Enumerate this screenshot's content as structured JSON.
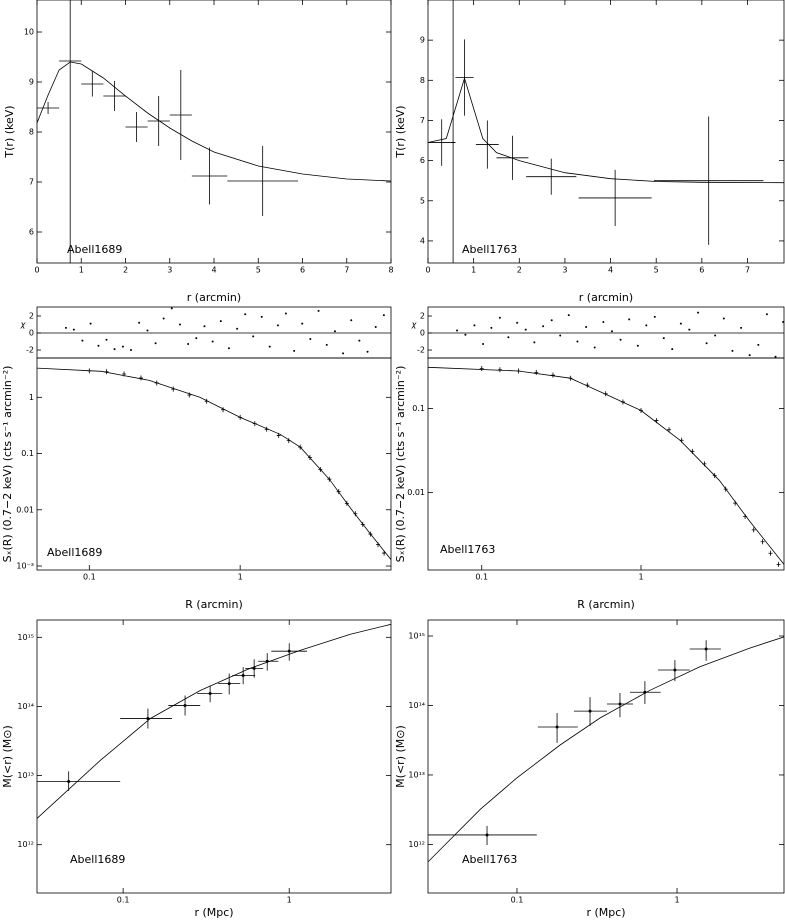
{
  "chart_data": [
    {
      "type": "errorbar",
      "ylabel": "T(r) (keV)",
      "xlabel": "r (arcmin)",
      "annotation": "Abell1689",
      "color": "#000000",
      "xlim": [
        0,
        8
      ],
      "ylim": [
        5.38,
        10.64
      ],
      "xticks": [
        0,
        1,
        2,
        3,
        4,
        5,
        6,
        7,
        8
      ],
      "yticks": [
        6,
        7,
        8,
        9,
        10
      ],
      "x": [
        0.25,
        0.75,
        1.25,
        1.75,
        2.25,
        2.75,
        3.25,
        3.9,
        5.1
      ],
      "xerr": [
        0.25,
        0.25,
        0.25,
        0.25,
        0.25,
        0.25,
        0.25,
        0.4,
        0.8
      ],
      "values": [
        8.48,
        9.42,
        8.96,
        8.72,
        8.1,
        8.22,
        8.34,
        7.12,
        7.02
      ],
      "yerr": [
        0.12,
        5.0,
        0.25,
        0.3,
        0.3,
        0.5,
        0.9,
        0.57,
        0.7
      ],
      "model": {
        "x": [
          0,
          0.25,
          0.5,
          0.75,
          1,
          1.5,
          2,
          2.5,
          3,
          3.5,
          4,
          5,
          6,
          7,
          8
        ],
        "values": [
          8.18,
          8.74,
          9.24,
          9.4,
          9.36,
          9.08,
          8.72,
          8.38,
          8.08,
          7.82,
          7.6,
          7.32,
          7.16,
          7.06,
          7.02
        ]
      }
    },
    {
      "type": "errorbar",
      "ylabel": "T(r) (keV)",
      "xlabel": "r (arcmin)",
      "annotation": "Abell1763",
      "color": "#000000",
      "xlim": [
        0,
        7.8
      ],
      "ylim": [
        3.45,
        10
      ],
      "xticks": [
        0,
        1,
        2,
        3,
        4,
        5,
        6,
        7
      ],
      "yticks": [
        4,
        5,
        6,
        7,
        8,
        9
      ],
      "x": [
        0.3,
        0.55,
        0.8,
        1.3,
        1.85,
        2.7,
        4.1,
        6.15
      ],
      "xerr": [
        0.3,
        0.05,
        0.2,
        0.25,
        0.35,
        0.55,
        0.8,
        1.2
      ],
      "values": [
        6.45,
        6.45,
        8.07,
        6.4,
        6.07,
        5.6,
        5.07,
        5.5
      ],
      "yerr": [
        0.58,
        6.0,
        0.95,
        0.6,
        0.55,
        0.45,
        0.7,
        1.6
      ],
      "model": {
        "x": [
          0,
          0.4,
          0.6,
          0.8,
          1.0,
          1.2,
          1.5,
          2,
          3,
          4,
          5,
          6,
          7.8
        ],
        "values": [
          6.45,
          6.55,
          7.3,
          8.05,
          7.3,
          6.55,
          6.2,
          6.0,
          5.7,
          5.55,
          5.48,
          5.46,
          5.45
        ]
      }
    },
    {
      "type": "errorbar",
      "ylabel": "Sₓ(R) (0.7−2 keV) (cts s⁻¹ arcmin⁻²)",
      "xlabel": "R (arcmin)",
      "annotation": "Abell1689",
      "color": "#555555",
      "xlog": true,
      "ylog": true,
      "xlim": [
        0.045,
        10
      ],
      "ylim": [
        0.00085,
        5
      ],
      "xticks": [
        0.1,
        1
      ],
      "yticks": [
        {
          "value": 0.001,
          "label": "10⁻³"
        },
        0.01,
        0.1,
        1
      ],
      "x": [
        0.1,
        0.13,
        0.17,
        0.22,
        0.28,
        0.36,
        0.46,
        0.6,
        0.77,
        1.0,
        1.25,
        1.5,
        1.8,
        2.1,
        2.5,
        2.9,
        3.4,
        3.9,
        4.5,
        5.1,
        5.8,
        6.5,
        7.3,
        8.2,
        9.0
      ],
      "values": [
        2.95,
        2.85,
        2.6,
        2.2,
        1.8,
        1.4,
        1.1,
        0.85,
        0.6,
        0.44,
        0.34,
        0.27,
        0.21,
        0.17,
        0.13,
        0.085,
        0.052,
        0.035,
        0.021,
        0.013,
        0.0085,
        0.0055,
        0.0037,
        0.0024,
        0.0017
      ],
      "model": {
        "x": [
          0.045,
          0.12,
          0.25,
          0.54,
          1,
          1.84,
          2.5,
          3.9,
          5.35,
          7.2,
          10
        ],
        "values": [
          3.3,
          2.9,
          2.0,
          1.0,
          0.44,
          0.22,
          0.13,
          0.035,
          0.011,
          0.0039,
          0.0013
        ]
      },
      "residuals": {
        "ylabel": "χ",
        "ylim": [
          -2.94,
          3.06
        ],
        "yticks": [
          -2,
          0,
          2
        ],
        "x": [
          0.07,
          0.079,
          0.09,
          0.102,
          0.115,
          0.13,
          0.147,
          0.167,
          0.189,
          0.214,
          0.243,
          0.275,
          0.311,
          0.352,
          0.399,
          0.452,
          0.512,
          0.58,
          0.657,
          0.744,
          0.843,
          0.955,
          1.08,
          1.22,
          1.39,
          1.57,
          1.78,
          2.01,
          2.28,
          2.58,
          2.92,
          3.31,
          3.75,
          4.25,
          4.81,
          5.45,
          6.17,
          6.99,
          7.92,
          8.97
        ],
        "values": [
          0.6,
          0.4,
          -0.9,
          1.1,
          -1.5,
          -0.8,
          -1.9,
          -1.6,
          -2.0,
          1.2,
          0.3,
          -1.2,
          1.7,
          2.9,
          1.0,
          -1.3,
          -0.6,
          0.8,
          -1.0,
          1.4,
          -1.8,
          0.5,
          2.2,
          -0.4,
          1.9,
          -1.6,
          0.9,
          2.3,
          -2.1,
          1.1,
          -0.7,
          2.6,
          -1.4,
          0.2,
          -2.4,
          1.5,
          -0.9,
          -2.2,
          0.7,
          2.1
        ]
      }
    },
    {
      "type": "errorbar",
      "ylabel": "Sₓ(R) (0.7−2 keV) (cts s⁻¹ arcmin⁻²)",
      "xlabel": "R (arcmin)",
      "annotation": "Abell1763",
      "color": "#555555",
      "xlog": true,
      "ylog": true,
      "xlim": [
        0.046,
        7.9
      ],
      "ylim": [
        0.0012,
        0.4
      ],
      "xticks": [
        0.1,
        1
      ],
      "yticks": [
        0.01,
        0.1
      ],
      "x": [
        0.1,
        0.13,
        0.17,
        0.22,
        0.28,
        0.36,
        0.46,
        0.6,
        0.77,
        1.0,
        1.25,
        1.5,
        1.8,
        2.1,
        2.5,
        2.9,
        3.4,
        3.9,
        4.5,
        5.1,
        5.8,
        6.5,
        7.3
      ],
      "values": [
        0.3,
        0.29,
        0.28,
        0.27,
        0.25,
        0.23,
        0.19,
        0.15,
        0.12,
        0.095,
        0.072,
        0.056,
        0.042,
        0.031,
        0.022,
        0.016,
        0.011,
        0.0075,
        0.0052,
        0.0036,
        0.0026,
        0.0019,
        0.0014
      ],
      "model": {
        "x": [
          0.046,
          0.17,
          0.36,
          0.64,
          1,
          1.76,
          3.1,
          4.8,
          7.9
        ],
        "values": [
          0.31,
          0.28,
          0.23,
          0.14,
          0.095,
          0.042,
          0.014,
          0.0046,
          0.0014
        ]
      },
      "residuals": {
        "ylabel": "χ",
        "ylim": [
          -2.94,
          3.06
        ],
        "yticks": [
          -2,
          0,
          2
        ],
        "x": [
          0.07,
          0.079,
          0.09,
          0.102,
          0.115,
          0.13,
          0.147,
          0.167,
          0.189,
          0.214,
          0.243,
          0.275,
          0.311,
          0.352,
          0.399,
          0.452,
          0.512,
          0.58,
          0.657,
          0.744,
          0.843,
          0.955,
          1.08,
          1.22,
          1.39,
          1.57,
          1.78,
          2.01,
          2.28,
          2.58,
          2.92,
          3.31,
          3.75,
          4.25,
          4.81,
          5.45,
          6.17,
          6.99,
          7.8
        ],
        "values": [
          0.3,
          -0.2,
          0.9,
          -1.3,
          0.6,
          1.8,
          -0.5,
          1.2,
          0.4,
          -1.1,
          0.8,
          1.5,
          -0.3,
          2.1,
          -1.0,
          0.7,
          -1.7,
          1.3,
          0.2,
          -0.8,
          1.6,
          -1.5,
          0.9,
          1.9,
          -0.6,
          -1.9,
          1.1,
          0.4,
          2.4,
          -1.2,
          -0.3,
          1.7,
          -2.1,
          0.6,
          -2.6,
          -1.4,
          2.2,
          -2.8,
          1.3
        ]
      }
    },
    {
      "type": "errorbar",
      "ylabel": "M(<r) (M⊙)",
      "xlabel": "r (Mpc)",
      "annotation": "Abell1689",
      "color": "#000000",
      "xlog": true,
      "ylog": true,
      "xlim": [
        0.0303,
        4.1
      ],
      "ylim": [
        200000000000.0,
        1780000000000000.0
      ],
      "xticks": [
        0.1,
        1
      ],
      "yticks": [
        {
          "value": 1000000000000.0,
          "label": "10¹²"
        },
        {
          "value": 10000000000000.0,
          "label": "10¹³"
        },
        {
          "value": 100000000000000.0,
          "label": "10¹⁴"
        },
        {
          "value": 1000000000000000.0,
          "label": "10¹⁵"
        }
      ],
      "x": [
        0.047,
        0.141,
        0.236,
        0.334,
        0.435,
        0.528,
        0.615,
        0.737,
        1.0
      ],
      "xrange": [
        [
          0.03,
          0.096
        ],
        [
          0.096,
          0.197
        ],
        [
          0.187,
          0.291
        ],
        [
          0.279,
          0.395
        ],
        [
          0.373,
          0.507
        ],
        [
          0.454,
          0.624
        ],
        [
          0.543,
          0.697
        ],
        [
          0.65,
          0.859
        ],
        [
          0.78,
          1.28
        ]
      ],
      "values": [
        8200000000000.0,
        67000000000000.0,
        103000000000000.0,
        154000000000000.0,
        214000000000000.0,
        280000000000000.0,
        355000000000000.0,
        450000000000000.0,
        630000000000000.0
      ],
      "yrange": [
        [
          6000000000000.0,
          11500000000000.0
        ],
        [
          48000000000000.0,
          93000000000000.0
        ],
        [
          74000000000000.0,
          144000000000000.0
        ],
        [
          115000000000000.0,
          200000000000000.0
        ],
        [
          149000000000000.0,
          300000000000000.0
        ],
        [
          210000000000000.0,
          370000000000000.0
        ],
        [
          260000000000000.0,
          480000000000000.0
        ],
        [
          330000000000000.0,
          590000000000000.0
        ],
        [
          460000000000000.0,
          820000000000000.0
        ]
      ],
      "model": {
        "x": [
          0.0303,
          0.073,
          0.146,
          0.291,
          0.58,
          1.17,
          2.32,
          4.1
        ],
        "values": [
          2400000000000.0,
          16600000000000.0,
          67000000000000.0,
          170000000000000.0,
          355000000000000.0,
          650000000000000.0,
          1100000000000000.0,
          1540000000000000.0
        ]
      }
    },
    {
      "type": "errorbar",
      "ylabel": "M(<r) (M⊙)",
      "xlabel": "r (Mpc)",
      "annotation": "Abell1763",
      "color": "#000000",
      "xlog": true,
      "ylog": true,
      "xlim": [
        0.0278,
        4.66
      ],
      "ylim": [
        200000000000.0,
        1700000000000000.0
      ],
      "xticks": [
        0.1,
        1
      ],
      "yticks": [
        {
          "value": 1000000000000.0,
          "label": "10¹²"
        },
        {
          "value": 10000000000000.0,
          "label": "10¹³"
        },
        {
          "value": 100000000000000.0,
          "label": "10¹⁴"
        },
        {
          "value": 1000000000000000.0,
          "label": "10¹⁵"
        }
      ],
      "x": [
        0.065,
        0.178,
        0.286,
        0.44,
        0.63,
        0.97,
        1.52
      ],
      "xrange": [
        [
          0.0278,
          0.133
        ],
        [
          0.135,
          0.24
        ],
        [
          0.227,
          0.365
        ],
        [
          0.365,
          0.531
        ],
        [
          0.508,
          0.79
        ],
        [
          0.76,
          1.2
        ],
        [
          1.2,
          1.88
        ]
      ],
      "values": [
        1370000000000.0,
        49000000000000.0,
        83000000000000.0,
        105000000000000.0,
        155000000000000.0,
        324000000000000.0,
        650000000000000.0
      ],
      "yrange": [
        [
          980000000000.0,
          1850000000000.0
        ],
        [
          29000000000000.0,
          78000000000000.0
        ],
        [
          51000000000000.0,
          132000000000000.0
        ],
        [
          68000000000000.0,
          151000000000000.0
        ],
        [
          105000000000000.0,
          224000000000000.0
        ],
        [
          224000000000000.0,
          450000000000000.0
        ],
        [
          440000000000000.0,
          870000000000000.0
        ]
      ],
      "model": {
        "x": [
          0.0278,
          0.059,
          0.1,
          0.186,
          0.33,
          0.68,
          1.39,
          2.85,
          4.66
        ],
        "values": [
          560000000000.0,
          3200000000000.0,
          9100000000000.0,
          27000000000000.0,
          66000000000000.0,
          166000000000000.0,
          360000000000000.0,
          670000000000000.0,
          970000000000000.0
        ]
      }
    }
  ]
}
